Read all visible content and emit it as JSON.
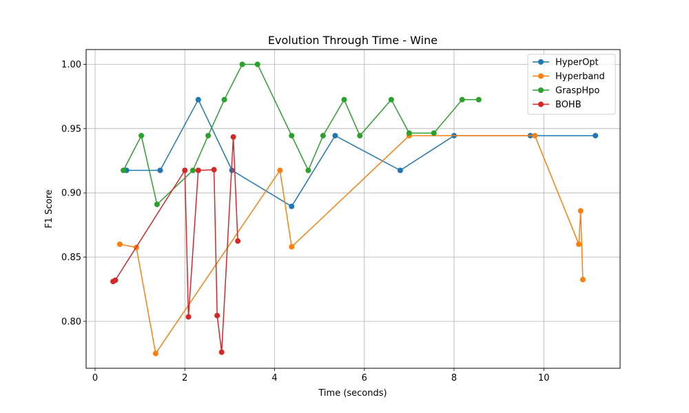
{
  "chart_data": {
    "type": "line",
    "title": "Evolution Through Time - Wine",
    "xlabel": "Time (seconds)",
    "ylabel": "F1 Score",
    "xlim": [
      -0.2,
      11.7
    ],
    "ylim": [
      0.7635,
      1.0115
    ],
    "xticks": [
      0,
      2,
      4,
      6,
      8,
      10
    ],
    "xtick_labels": [
      "0",
      "2",
      "4",
      "6",
      "8",
      "10"
    ],
    "yticks": [
      0.8,
      0.85,
      0.9,
      0.95,
      1.0
    ],
    "ytick_labels": [
      "0.80",
      "0.85",
      "0.90",
      "0.95",
      "1.00"
    ],
    "grid": true,
    "legend_position": "top-right",
    "series": [
      {
        "name": "HyperOpt",
        "color": "#1f77b4",
        "x": [
          0.7,
          1.45,
          2.3,
          3.05,
          4.38,
          5.35,
          6.8,
          8.0,
          9.7,
          11.15
        ],
        "y": [
          0.9175,
          0.9175,
          0.9725,
          0.9175,
          0.8895,
          0.9445,
          0.9175,
          0.9445,
          0.9445,
          0.9445
        ]
      },
      {
        "name": "Hyperband",
        "color": "#ff7f0e",
        "x": [
          0.55,
          0.92,
          1.35,
          4.12,
          4.38,
          7.0,
          9.8,
          10.78,
          10.82,
          10.87
        ],
        "y": [
          0.86,
          0.8575,
          0.775,
          0.9175,
          0.858,
          0.9445,
          0.9445,
          0.86,
          0.886,
          0.8325
        ]
      },
      {
        "name": "GraspHpo",
        "color": "#2ca02c",
        "x": [
          0.63,
          1.03,
          1.38,
          2.18,
          2.52,
          2.88,
          3.28,
          3.62,
          4.38,
          4.75,
          5.08,
          5.55,
          5.9,
          6.6,
          7.0,
          7.55,
          8.18,
          8.55
        ],
        "y": [
          0.9175,
          0.9445,
          0.891,
          0.9175,
          0.9445,
          0.9725,
          1.0,
          1.0,
          0.9445,
          0.9175,
          0.9445,
          0.9725,
          0.9445,
          0.9725,
          0.9465,
          0.9465,
          0.9725,
          0.9725
        ]
      },
      {
        "name": "BOHB",
        "color": "#d62728",
        "x": [
          0.4,
          0.45,
          2.0,
          2.08,
          2.3,
          2.65,
          2.72,
          2.82,
          3.08,
          3.18
        ],
        "y": [
          0.831,
          0.832,
          0.9175,
          0.8035,
          0.9175,
          0.918,
          0.8045,
          0.776,
          0.9435,
          0.8625
        ]
      }
    ]
  }
}
